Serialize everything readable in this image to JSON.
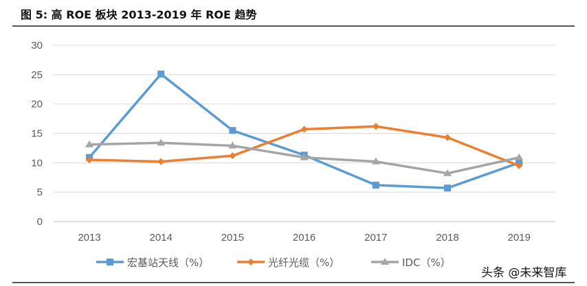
{
  "title": "图 5:  高 ROE 板块 2013-2019 年 ROE 趋势",
  "watermark": "头条 @未来智库",
  "chart_data": {
    "type": "line",
    "x": [
      "2013",
      "2014",
      "2015",
      "2016",
      "2017",
      "2018",
      "2019"
    ],
    "ylim": [
      0,
      30
    ],
    "yticks": [
      0,
      5,
      10,
      15,
      20,
      25,
      30
    ],
    "grid": true,
    "legend": "bottom",
    "series": [
      {
        "name": "宏基站天线（%）",
        "color": "#5B9BD5",
        "marker": "square",
        "values": [
          10.9,
          25.1,
          15.5,
          11.3,
          6.2,
          5.7,
          10.0
        ]
      },
      {
        "name": "光纤光缆（%）",
        "color": "#ED7D31",
        "marker": "diamond",
        "values": [
          10.5,
          10.2,
          11.2,
          15.7,
          16.2,
          14.3,
          9.5
        ]
      },
      {
        "name": "IDC（%）",
        "color": "#A5A5A5",
        "marker": "triangle",
        "values": [
          13.1,
          13.4,
          12.9,
          10.9,
          10.2,
          8.2,
          10.9
        ]
      }
    ]
  }
}
